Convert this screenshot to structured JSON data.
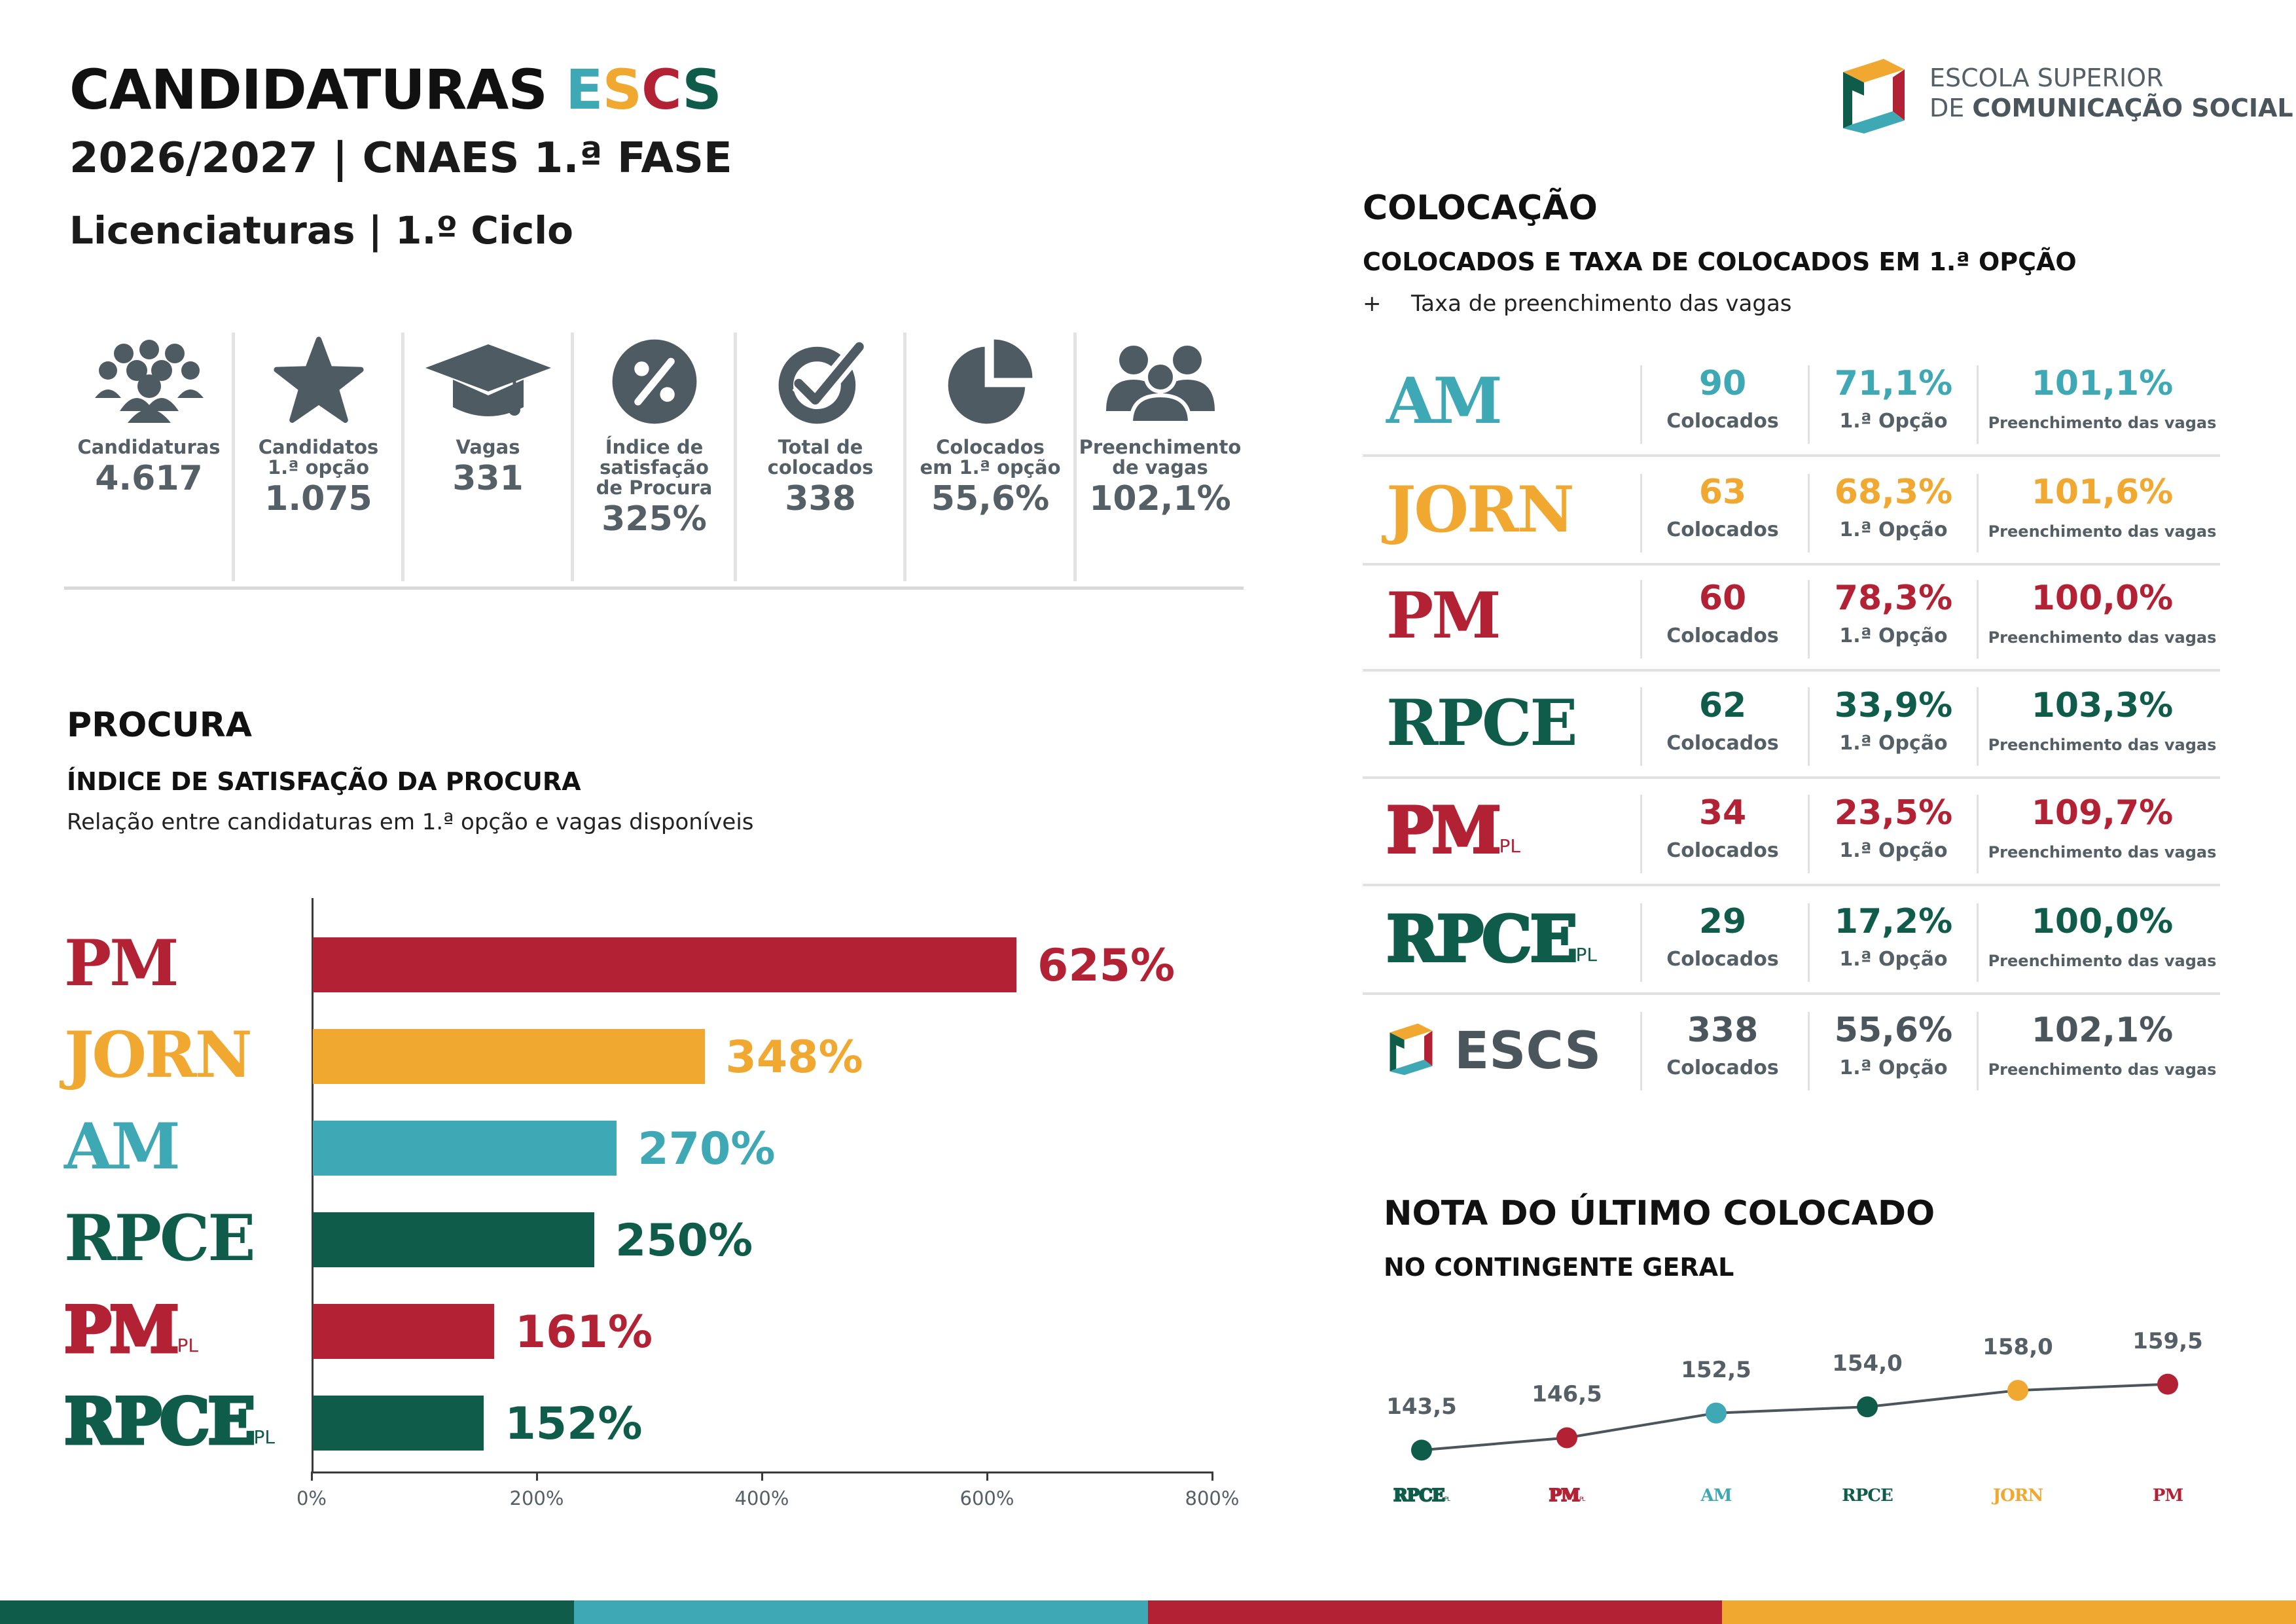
{
  "header": {
    "title_main": "CANDIDATURAS ",
    "title_escs": [
      "E",
      "S",
      "C",
      "S"
    ],
    "line2": "2026/2027 | CNAES 1.ª FASE",
    "line3": "Licenciaturas | 1.º Ciclo",
    "logo_line1": "ESCOLA SUPERIOR",
    "logo_line2_a": "DE ",
    "logo_line2_b": "COMUNICAÇÃO SOCIAL"
  },
  "kpis": [
    {
      "icon": "group-icon",
      "label": "Candidaturas",
      "value": "4.617"
    },
    {
      "icon": "star-icon",
      "label": "Candidatos\n1.ª opção",
      "value": "1.075"
    },
    {
      "icon": "graduation-cap-icon",
      "label": "Vagas",
      "value": "331"
    },
    {
      "icon": "percent-icon",
      "label": "Índice de\nsatisfação\nde Procura",
      "value": "325%"
    },
    {
      "icon": "check-badge-icon",
      "label": "Total de\ncolocados",
      "value": "338"
    },
    {
      "icon": "pie-icon",
      "label": "Colocados\nem 1.ª opção",
      "value": "55,6%"
    },
    {
      "icon": "people-icon",
      "label": "Preenchimento\nde vagas",
      "value": "102,1%"
    }
  ],
  "procura": {
    "heading": "PROCURA",
    "subheading": "ÍNDICE DE SATISFAÇÃO DA PROCURA",
    "note": "Relação entre candidaturas em 1.ª opção e vagas disponíveis"
  },
  "chart_data": [
    {
      "type": "bar",
      "orientation": "horizontal",
      "categories": [
        "PM",
        "JORN",
        "AM",
        "RPCE",
        "PMPL",
        "RPCEPL"
      ],
      "category_labels": [
        {
          "text": "PM",
          "sub": ""
        },
        {
          "text": "JORN",
          "sub": ""
        },
        {
          "text": "AM",
          "sub": ""
        },
        {
          "text": "RPCE",
          "sub": ""
        },
        {
          "text": "PM",
          "sub": "PL"
        },
        {
          "text": "RPCE",
          "sub": "PL"
        }
      ],
      "values": [
        625,
        348,
        270,
        250,
        161,
        152
      ],
      "value_labels": [
        "625%",
        "348%",
        "270%",
        "250%",
        "161%",
        "152%"
      ],
      "colors": [
        "#b22234",
        "#f0a830",
        "#3fa8b5",
        "#0f5c4b",
        "#b22234",
        "#0f5c4b"
      ],
      "outline": [
        false,
        false,
        false,
        false,
        true,
        true
      ],
      "xlim": [
        0,
        800
      ],
      "xticks": [
        "0%",
        "200%",
        "400%",
        "600%",
        "800%"
      ],
      "title": "ÍNDICE DE SATISFAÇÃO DA PROCURA"
    },
    {
      "type": "line",
      "title": "NOTA DO ÚLTIMO COLOCADO",
      "subtitle": "NO CONTINGENTE GERAL",
      "categories": [
        {
          "text": "RPCE",
          "sub": "PL",
          "color": "#0f5c4b",
          "outline": true
        },
        {
          "text": "PM",
          "sub": "PL",
          "color": "#b22234",
          "outline": true
        },
        {
          "text": "AM",
          "sub": "",
          "color": "#3fa8b5",
          "outline": false
        },
        {
          "text": "RPCE",
          "sub": "",
          "color": "#0f5c4b",
          "outline": false
        },
        {
          "text": "JORN",
          "sub": "",
          "color": "#f0a830",
          "outline": false
        },
        {
          "text": "PM",
          "sub": "",
          "color": "#b22234",
          "outline": false
        }
      ],
      "values": [
        143.5,
        146.5,
        152.5,
        154.0,
        158.0,
        159.5
      ],
      "value_labels": [
        "143,5",
        "146,5",
        "152,5",
        "154,0",
        "158,0",
        "159,5"
      ],
      "point_colors": [
        "#0f5c4b",
        "#b22234",
        "#3fa8b5",
        "#0f5c4b",
        "#f0a830",
        "#b22234"
      ],
      "line_color": "#4a555c",
      "ylim": [
        138,
        165
      ]
    }
  ],
  "colocacao": {
    "heading": "COLOCAÇÃO",
    "subheading": "COLOCADOS E TAXA DE COLOCADOS EM 1.ª OPÇÃO",
    "note_plus": "+",
    "note": "Taxa de preenchimento das vagas",
    "caption_colocados": "Colocados",
    "caption_opcao": "1.ª Opção",
    "caption_preench": "Preenchimento das vagas",
    "rows": [
      {
        "prog": "AM",
        "sub": "",
        "color": "#3fa8b5",
        "outline": false,
        "colocados": "90",
        "opcao": "71,1%",
        "preench": "101,1%"
      },
      {
        "prog": "JORN",
        "sub": "",
        "color": "#f0a830",
        "outline": false,
        "colocados": "63",
        "opcao": "68,3%",
        "preench": "101,6%"
      },
      {
        "prog": "PM",
        "sub": "",
        "color": "#b22234",
        "outline": false,
        "colocados": "60",
        "opcao": "78,3%",
        "preench": "100,0%"
      },
      {
        "prog": "RPCE",
        "sub": "",
        "color": "#0f5c4b",
        "outline": false,
        "colocados": "62",
        "opcao": "33,9%",
        "preench": "103,3%"
      },
      {
        "prog": "PM",
        "sub": "PL",
        "color": "#b22234",
        "outline": true,
        "colocados": "34",
        "opcao": "23,5%",
        "preench": "109,7%"
      },
      {
        "prog": "RPCE",
        "sub": "PL",
        "color": "#0f5c4b",
        "outline": true,
        "colocados": "29",
        "opcao": "17,2%",
        "preench": "100,0%"
      },
      {
        "prog": "ESCS",
        "sub": "",
        "color": "#4a555c",
        "outline": false,
        "logo": true,
        "colocados": "338",
        "opcao": "55,6%",
        "preench": "102,1%"
      }
    ]
  },
  "footer_colors": [
    "#0f5c4b",
    "#3fa8b5",
    "#b22234",
    "#f0a830"
  ]
}
